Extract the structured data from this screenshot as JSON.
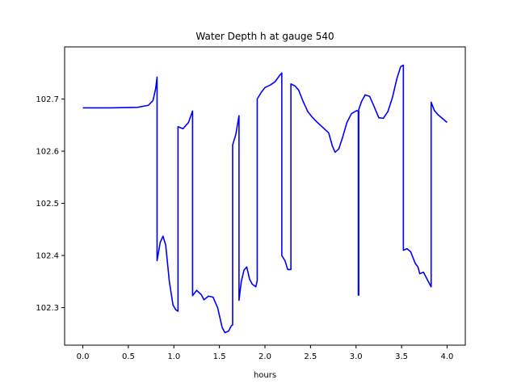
{
  "chart_data": {
    "type": "line",
    "title": "Water Depth h at gauge 540",
    "xlabel": "hours",
    "ylabel": "",
    "xlim": [
      -0.2,
      4.2
    ],
    "ylim": [
      102.228,
      102.8
    ],
    "xticks": [
      0.0,
      0.5,
      1.0,
      1.5,
      2.0,
      2.5,
      3.0,
      3.5,
      4.0
    ],
    "xtick_labels": [
      "0.0",
      "0.5",
      "1.0",
      "1.5",
      "2.0",
      "2.5",
      "3.0",
      "3.5",
      "4.0"
    ],
    "yticks": [
      102.3,
      102.4,
      102.5,
      102.6,
      102.7
    ],
    "ytick_labels": [
      "102.3",
      "102.4",
      "102.5",
      "102.6",
      "102.7"
    ],
    "grid": false,
    "series": [
      {
        "color": "#0000ff",
        "x": [
          0.0,
          0.3,
          0.6,
          0.72,
          0.77,
          0.8,
          0.815,
          0.815,
          0.85,
          0.88,
          0.91,
          0.95,
          0.99,
          1.02,
          1.045,
          1.045,
          1.1,
          1.16,
          1.205,
          1.205,
          1.25,
          1.3,
          1.33,
          1.38,
          1.43,
          1.48,
          1.53,
          1.56,
          1.6,
          1.63,
          1.645,
          1.645,
          1.68,
          1.715,
          1.715,
          1.74,
          1.77,
          1.8,
          1.83,
          1.86,
          1.9,
          1.915,
          1.915,
          1.96,
          2.0,
          2.06,
          2.11,
          2.16,
          2.185,
          2.185,
          2.22,
          2.25,
          2.285,
          2.285,
          2.33,
          2.37,
          2.42,
          2.47,
          2.52,
          2.57,
          2.62,
          2.7,
          2.74,
          2.77,
          2.81,
          2.85,
          2.9,
          2.95,
          3.01,
          3.025,
          3.025,
          3.03,
          3.03,
          3.06,
          3.1,
          3.15,
          3.2,
          3.25,
          3.3,
          3.35,
          3.4,
          3.45,
          3.49,
          3.52,
          3.52,
          3.56,
          3.6,
          3.65,
          3.68,
          3.7,
          3.74,
          3.77,
          3.8,
          3.825,
          3.825,
          3.86,
          3.9,
          4.0
        ],
        "y": [
          102.683,
          102.683,
          102.684,
          102.688,
          102.697,
          102.72,
          102.742,
          102.39,
          102.425,
          102.437,
          102.42,
          102.35,
          102.305,
          102.296,
          102.293,
          102.647,
          102.643,
          102.655,
          102.677,
          102.323,
          102.333,
          102.325,
          102.315,
          102.322,
          102.32,
          102.3,
          102.262,
          102.252,
          102.255,
          102.265,
          102.267,
          102.612,
          102.632,
          102.668,
          102.314,
          102.35,
          102.372,
          102.378,
          102.355,
          102.345,
          102.34,
          102.352,
          102.7,
          102.713,
          102.722,
          102.727,
          102.733,
          102.745,
          102.75,
          102.4,
          102.39,
          102.373,
          102.373,
          102.729,
          102.725,
          102.717,
          102.695,
          102.676,
          102.665,
          102.656,
          102.648,
          102.635,
          102.61,
          102.598,
          102.604,
          102.625,
          102.655,
          102.672,
          102.678,
          102.676,
          102.324,
          102.324,
          102.68,
          102.695,
          102.708,
          102.705,
          102.685,
          102.664,
          102.663,
          102.676,
          102.703,
          102.74,
          102.762,
          102.765,
          102.41,
          102.413,
          102.407,
          102.385,
          102.378,
          102.365,
          102.368,
          102.358,
          102.348,
          102.34,
          102.694,
          102.678,
          102.67,
          102.655
        ]
      }
    ]
  }
}
